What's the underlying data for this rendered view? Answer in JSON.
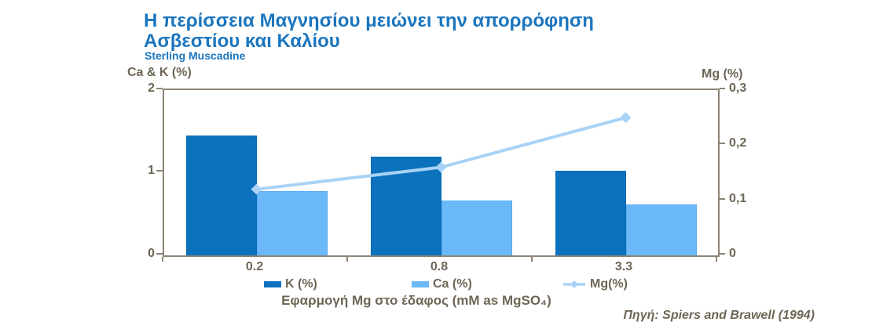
{
  "header": {
    "title_line1": "Η περίσσεια Μαγνησίου μειώνει την απορρόφηση",
    "title_line2": "Ασβεστίου και Καλίου",
    "subtitle": "Sterling Muscadine",
    "title_color": "#1B75BE"
  },
  "footer": {
    "source": "Πηγή: Spiers and Brawell (1994)"
  },
  "chart_data": {
    "type": "bar",
    "subtype": "combo-bar-line-dual-axis",
    "title": "Η περίσσεια Μαγνησίου μειώνει την απορρόφηση Ασβεστίου και Καλίου",
    "subtitle": "Sterling Muscadine",
    "categories": [
      "0.2",
      "0.8",
      "3.3"
    ],
    "xlabel": "Εφαρμογή Mg στο έδαφος (mM as MgSO₄)",
    "left_axis": {
      "title": "Ca & K (%)",
      "min": 0,
      "max": 2,
      "tick_labels": [
        "2",
        "1",
        "0"
      ]
    },
    "right_axis": {
      "title": "Mg (%)",
      "min": 0,
      "max": 0.3,
      "tick_labels": [
        "0,3",
        "0,2",
        "0,1",
        "0"
      ]
    },
    "series": [
      {
        "name": "K (%)",
        "type": "bar",
        "axis": "left",
        "values": [
          1.45,
          1.19,
          1.02
        ],
        "color": "#0D72BE"
      },
      {
        "name": "Ca (%)",
        "type": "bar",
        "axis": "left",
        "values": [
          0.78,
          0.66,
          0.62
        ],
        "color": "#6CB9FA"
      },
      {
        "name": "Mg(%)",
        "type": "line",
        "axis": "right",
        "values": [
          0.12,
          0.16,
          0.25
        ],
        "color": "#A9D3F6",
        "marker": "diamond"
      }
    ],
    "legend_position": "bottom",
    "grid": false,
    "frame_color": "#8C8374",
    "text_color": "#6E6656"
  }
}
